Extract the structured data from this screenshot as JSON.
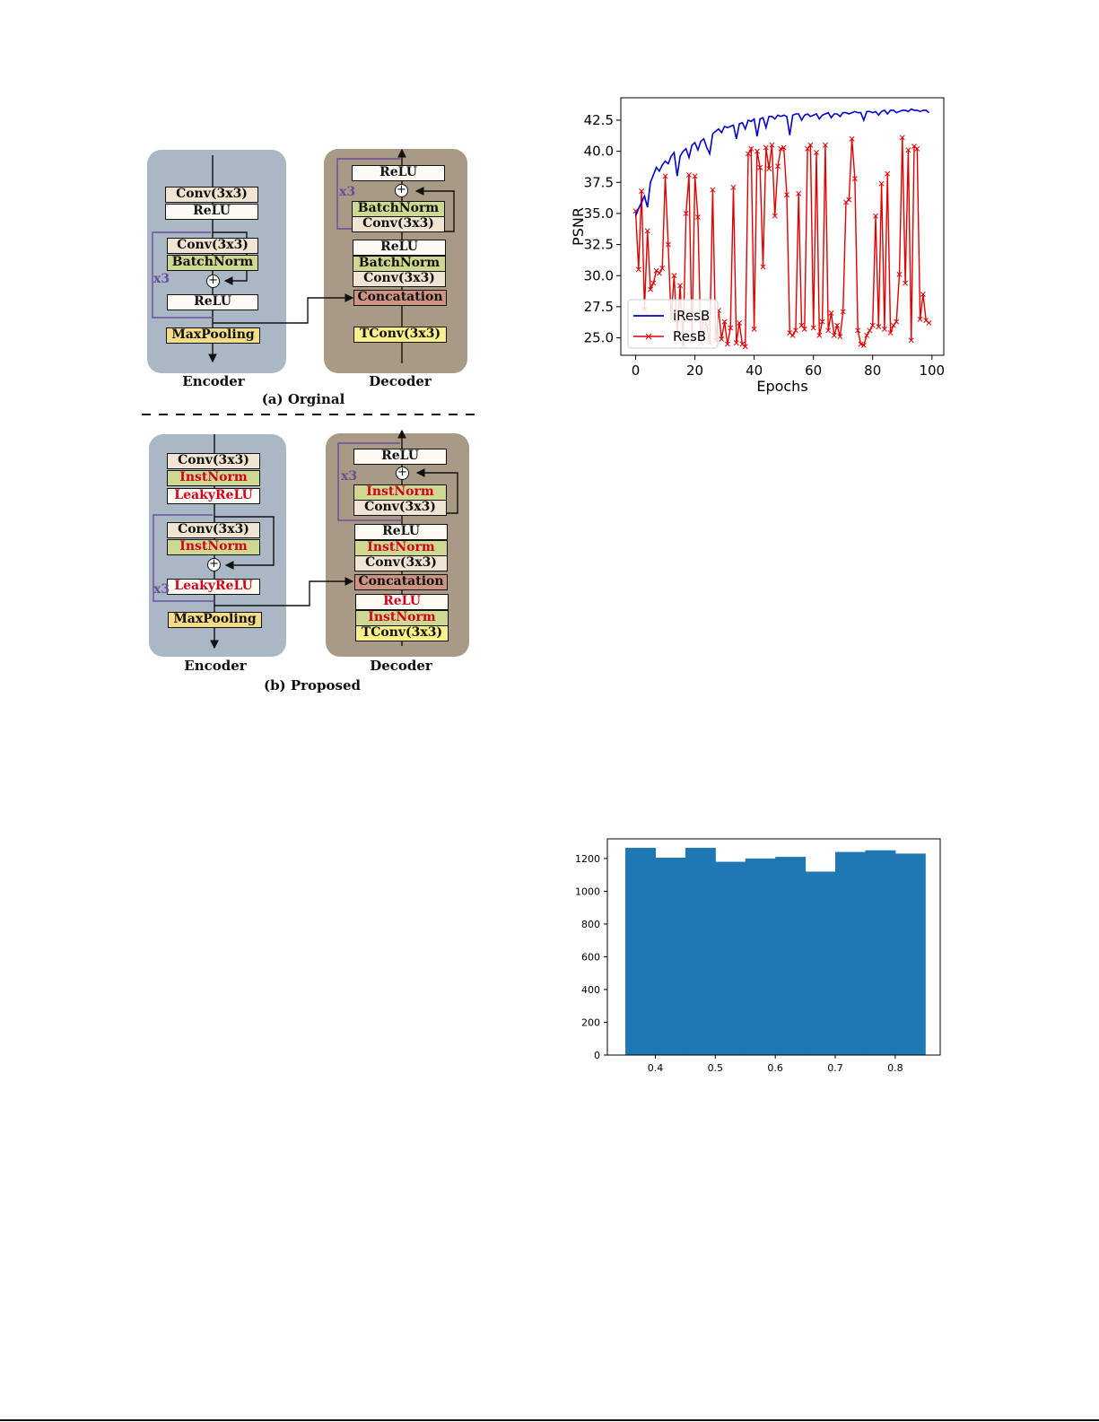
{
  "figure_a": {
    "caption": "(a) Orginal",
    "encoder": {
      "label": "Encoder",
      "conv_top": "Conv(3x3)",
      "relu_top": "ReLU",
      "conv_res": "Conv(3x3)",
      "bn_res": "BatchNorm",
      "relu_res": "ReLU",
      "pool": "MaxPooling",
      "repeat": "x3"
    },
    "decoder": {
      "label": "Decoder",
      "relu_out": "ReLU",
      "bn_res": "BatchNorm",
      "conv_res": "Conv(3x3)",
      "relu_mid": "ReLU",
      "bn_mid": "BatchNorm",
      "conv_mid": "Conv(3x3)",
      "concat": "Concatation",
      "tconv": "TConv(3x3)",
      "repeat": "x3"
    }
  },
  "figure_b": {
    "caption": "(b) Proposed",
    "encoder": {
      "label": "Encoder",
      "conv_top": "Conv(3x3)",
      "norm_top": "InstNorm",
      "act_top": "LeakyReLU",
      "conv_res": "Conv(3x3)",
      "norm_res": "InstNorm",
      "act_res": "LeakyReLU",
      "pool": "MaxPooling",
      "repeat": "x3"
    },
    "decoder": {
      "label": "Decoder",
      "relu_out": "ReLU",
      "norm_res": "InstNorm",
      "conv_res": "Conv(3x3)",
      "relu_mid": "ReLU",
      "norm_mid": "InstNorm",
      "conv_mid": "Conv(3x3)",
      "concat": "Concatation",
      "relu_low": "ReLU",
      "norm_low": "InstNorm",
      "tconv": "TConv(3x3)",
      "repeat": "x3"
    }
  },
  "colors": {
    "ires_line": "#0000cc",
    "res_line": "#e00000",
    "hist_bar": "#1f77b4"
  },
  "chart_data": [
    {
      "type": "line",
      "title": "",
      "xlabel": "Epochs",
      "ylabel": "PSNR",
      "xlim": [
        -5,
        104
      ],
      "ylim": [
        23.6,
        44.3
      ],
      "xticks": [
        0,
        20,
        40,
        60,
        80,
        100
      ],
      "yticks": [
        25.0,
        27.5,
        30.0,
        32.5,
        35.0,
        37.5,
        40.0,
        42.5
      ],
      "ytick_labels": [
        "25.0",
        "27.5",
        "30.0",
        "32.5",
        "35.0",
        "37.5",
        "40.0",
        "42.5"
      ],
      "legend_position": "lower-left",
      "series": [
        {
          "name": "iResB",
          "marker": "none",
          "x": [
            0,
            1,
            2,
            3,
            4,
            5,
            6,
            7,
            8,
            9,
            10,
            11,
            12,
            13,
            14,
            15,
            16,
            17,
            18,
            19,
            20,
            21,
            22,
            23,
            24,
            25,
            26,
            27,
            28,
            29,
            30,
            31,
            32,
            33,
            34,
            35,
            36,
            37,
            38,
            39,
            40,
            41,
            42,
            43,
            44,
            45,
            46,
            47,
            48,
            49,
            50,
            51,
            52,
            53,
            54,
            55,
            56,
            57,
            58,
            59,
            60,
            61,
            62,
            63,
            64,
            65,
            66,
            67,
            68,
            69,
            70,
            71,
            72,
            73,
            74,
            75,
            76,
            77,
            78,
            79,
            80,
            81,
            82,
            83,
            84,
            85,
            86,
            87,
            88,
            89,
            90,
            91,
            92,
            93,
            94,
            95,
            96,
            97,
            98,
            99
          ],
          "y": [
            34.8,
            35.4,
            35.9,
            36.4,
            35.5,
            37.5,
            38.1,
            38.7,
            38.4,
            38.9,
            39.2,
            39.0,
            39.6,
            39.9,
            38.0,
            39.6,
            40.0,
            40.2,
            39.5,
            40.5,
            40.7,
            40.1,
            40.8,
            41.0,
            40.3,
            39.8,
            41.4,
            41.6,
            41.8,
            41.5,
            42.0,
            41.9,
            42.0,
            42.1,
            41.0,
            42.2,
            42.3,
            41.8,
            42.5,
            42.4,
            42.6,
            41.2,
            42.6,
            42.7,
            41.9,
            42.8,
            42.8,
            42.6,
            42.9,
            42.8,
            42.9,
            42.8,
            41.3,
            42.9,
            43.0,
            43.0,
            42.5,
            42.9,
            43.0,
            42.8,
            42.9,
            43.0,
            42.6,
            42.9,
            43.0,
            43.1,
            42.7,
            43.0,
            43.0,
            42.8,
            43.1,
            43.1,
            43.0,
            43.1,
            43.2,
            43.1,
            43.1,
            42.5,
            43.2,
            43.2,
            43.1,
            43.2,
            42.9,
            43.2,
            43.3,
            43.0,
            43.3,
            43.3,
            43.1,
            43.2,
            43.3,
            43.3,
            43.2,
            43.4,
            43.3,
            43.3,
            43.2,
            43.3,
            43.3,
            43.1
          ]
        },
        {
          "name": "ResB",
          "marker": "x",
          "x": [
            0,
            1,
            2,
            3,
            4,
            5,
            6,
            7,
            8,
            9,
            10,
            11,
            12,
            13,
            14,
            15,
            16,
            17,
            18,
            19,
            20,
            21,
            22,
            23,
            24,
            25,
            26,
            27,
            28,
            29,
            30,
            31,
            32,
            33,
            34,
            35,
            36,
            37,
            38,
            39,
            40,
            41,
            42,
            43,
            44,
            45,
            46,
            47,
            48,
            49,
            50,
            51,
            52,
            53,
            54,
            55,
            56,
            57,
            58,
            59,
            60,
            61,
            62,
            63,
            64,
            65,
            66,
            67,
            68,
            69,
            70,
            71,
            72,
            73,
            74,
            75,
            76,
            77,
            78,
            79,
            80,
            81,
            82,
            83,
            84,
            85,
            86,
            87,
            88,
            89,
            90,
            91,
            92,
            93,
            94,
            95,
            96,
            97,
            98,
            99
          ],
          "y": [
            35.2,
            30.5,
            36.8,
            27.3,
            33.6,
            28.9,
            29.4,
            30.4,
            30.2,
            30.6,
            38.0,
            32.5,
            26.5,
            30.0,
            25.3,
            29.2,
            24.4,
            35.0,
            38.1,
            24.8,
            38.0,
            34.7,
            24.6,
            26.8,
            25.9,
            24.6,
            36.9,
            24.8,
            27.2,
            24.9,
            26.3,
            24.5,
            25.8,
            37.1,
            24.6,
            26.2,
            24.5,
            24.3,
            39.8,
            40.2,
            25.7,
            40.0,
            38.7,
            30.7,
            40.3,
            38.6,
            40.5,
            34.8,
            38.8,
            40.2,
            40.3,
            36.5,
            25.4,
            25.2,
            25.6,
            36.6,
            26.0,
            25.7,
            40.2,
            40.5,
            25.8,
            39.9,
            25.2,
            26.3,
            40.5,
            25.6,
            27.0,
            25.2,
            26.0,
            25.1,
            27.1,
            35.9,
            36.1,
            41.0,
            37.8,
            25.6,
            24.5,
            24.4,
            25.2,
            25.6,
            26.0,
            34.8,
            25.9,
            37.4,
            25.7,
            38.2,
            25.4,
            26.0,
            26.3,
            30.1,
            41.1,
            29.4,
            40.1,
            24.8,
            40.4,
            40.2,
            26.5,
            28.5,
            26.4,
            26.2
          ]
        }
      ]
    },
    {
      "type": "bar",
      "title": "",
      "xlabel": "",
      "ylabel": "",
      "xlim": [
        0.32,
        0.875
      ],
      "ylim": [
        0,
        1320
      ],
      "xticks": [
        0.4,
        0.5,
        0.6,
        0.7,
        0.8
      ],
      "yticks": [
        0,
        200,
        400,
        600,
        800,
        1000,
        1200
      ],
      "bin_edges": [
        0.35,
        0.4,
        0.45,
        0.5,
        0.55,
        0.6,
        0.65,
        0.7,
        0.75,
        0.8,
        0.85
      ],
      "values": [
        1265,
        1205,
        1265,
        1180,
        1200,
        1210,
        1120,
        1240,
        1250,
        1230
      ]
    }
  ]
}
